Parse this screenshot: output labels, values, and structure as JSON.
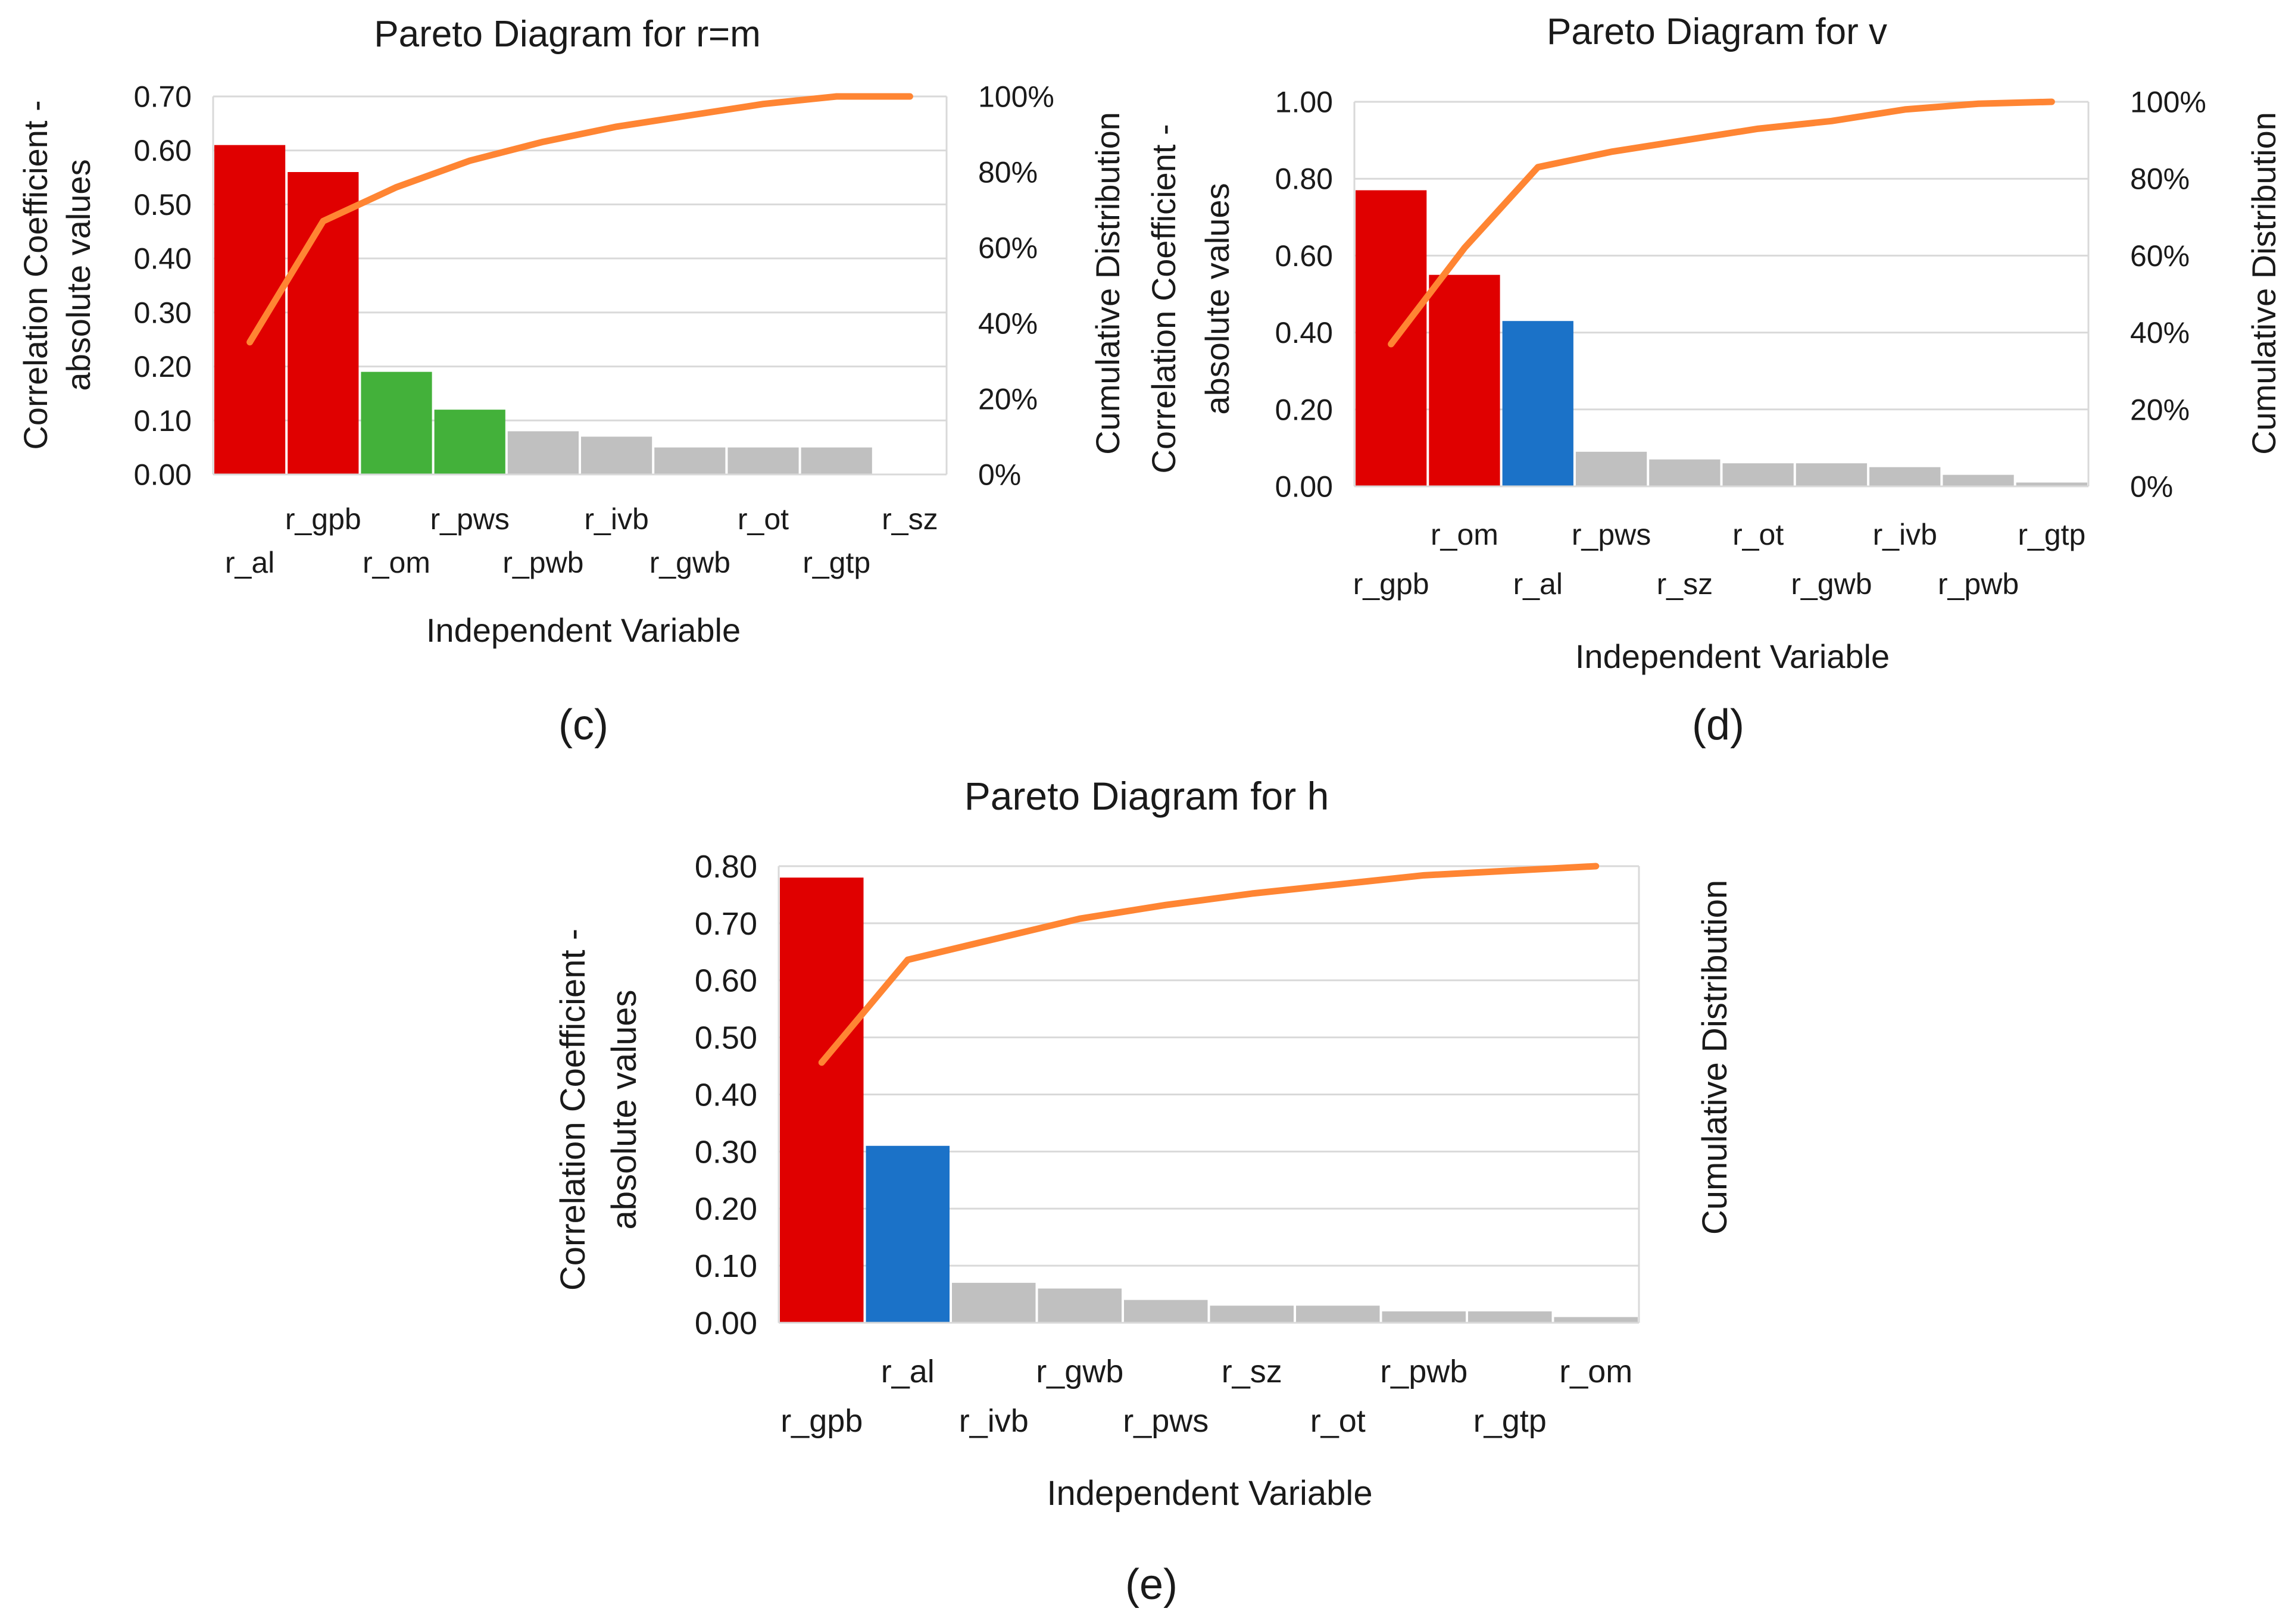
{
  "chart_data": [
    {
      "id": "c",
      "type": "bar",
      "title": "Pareto Diagram for r=m",
      "panel_label": "(c)",
      "xlabel": "Independent Variable",
      "ylabel": [
        "Correlation Coefficient -",
        "absolute values"
      ],
      "y2label": "Cumulative Distribution",
      "ylim": [
        0,
        0.7
      ],
      "yticks": [
        "0.00",
        "0.10",
        "0.20",
        "0.30",
        "0.40",
        "0.50",
        "0.60",
        "0.70"
      ],
      "y2lim": [
        0,
        100
      ],
      "y2ticks": [
        "0%",
        "20%",
        "40%",
        "60%",
        "80%",
        "100%"
      ],
      "categories": [
        "r_al",
        "r_gpb",
        "r_om",
        "r_pws",
        "r_pwb",
        "r_ivb",
        "r_gwb",
        "r_ot",
        "r_gtp",
        "r_sz"
      ],
      "values": [
        0.61,
        0.56,
        0.19,
        0.12,
        0.08,
        0.07,
        0.05,
        0.05,
        0.05,
        0.0
      ],
      "colors": [
        "#e00000",
        "#e00000",
        "#43b13a",
        "#43b13a",
        "#c0c0c0",
        "#c0c0c0",
        "#c0c0c0",
        "#c0c0c0",
        "#c0c0c0",
        "#c0c0c0"
      ],
      "cumulative": [
        35,
        67,
        76,
        83,
        88,
        92,
        95,
        98,
        100,
        100
      ],
      "line_color": "#ff8533",
      "grid": true
    },
    {
      "id": "d",
      "type": "bar",
      "title": "Pareto Diagram for v",
      "panel_label": "(d)",
      "xlabel": "Independent Variable",
      "ylabel": [
        "Correlation Coefficient -",
        "absolute values"
      ],
      "y2label": "Cumulative Distribution",
      "ylim": [
        0,
        1.0
      ],
      "yticks": [
        "0.00",
        "0.20",
        "0.40",
        "0.60",
        "0.80",
        "1.00"
      ],
      "y2lim": [
        0,
        100
      ],
      "y2ticks": [
        "0%",
        "20%",
        "40%",
        "60%",
        "80%",
        "100%"
      ],
      "categories": [
        "r_gpb",
        "r_om",
        "r_al",
        "r_pws",
        "r_sz",
        "r_ot",
        "r_gwb",
        "r_ivb",
        "r_pwb",
        "r_gtp"
      ],
      "values": [
        0.77,
        0.55,
        0.43,
        0.09,
        0.07,
        0.06,
        0.06,
        0.05,
        0.03,
        0.01
      ],
      "colors": [
        "#e00000",
        "#e00000",
        "#1b72c8",
        "#c0c0c0",
        "#c0c0c0",
        "#c0c0c0",
        "#c0c0c0",
        "#c0c0c0",
        "#c0c0c0",
        "#c0c0c0"
      ],
      "cumulative": [
        37,
        62,
        83,
        87,
        90,
        93,
        95,
        98,
        99.5,
        100
      ],
      "line_color": "#ff8533",
      "grid": true
    },
    {
      "id": "e",
      "type": "bar",
      "title": "Pareto Diagram for h",
      "panel_label": "(e)",
      "xlabel": "Independent Variable",
      "ylabel": [
        "Correlation Coefficient -",
        "absolute values"
      ],
      "y2label": "Cumulative Distribution",
      "ylim": [
        0,
        0.8
      ],
      "yticks": [
        "0.00",
        "0.10",
        "0.20",
        "0.30",
        "0.40",
        "0.50",
        "0.60",
        "0.70",
        "0.80"
      ],
      "y2lim": [
        0,
        100
      ],
      "y2ticks": [],
      "categories": [
        "r_gpb",
        "r_al",
        "r_ivb",
        "r_gwb",
        "r_pws",
        "r_sz",
        "r_ot",
        "r_pwb",
        "r_gtp",
        "r_om"
      ],
      "values": [
        0.78,
        0.31,
        0.07,
        0.06,
        0.04,
        0.03,
        0.03,
        0.02,
        0.02,
        0.01
      ],
      "colors": [
        "#e00000",
        "#1b72c8",
        "#c0c0c0",
        "#c0c0c0",
        "#c0c0c0",
        "#c0c0c0",
        "#c0c0c0",
        "#c0c0c0",
        "#c0c0c0",
        "#c0c0c0"
      ],
      "cumulative": [
        57,
        79.5,
        84,
        88.5,
        91.5,
        94,
        96,
        98,
        99,
        100
      ],
      "line_color": "#ff8533",
      "grid": true
    }
  ]
}
